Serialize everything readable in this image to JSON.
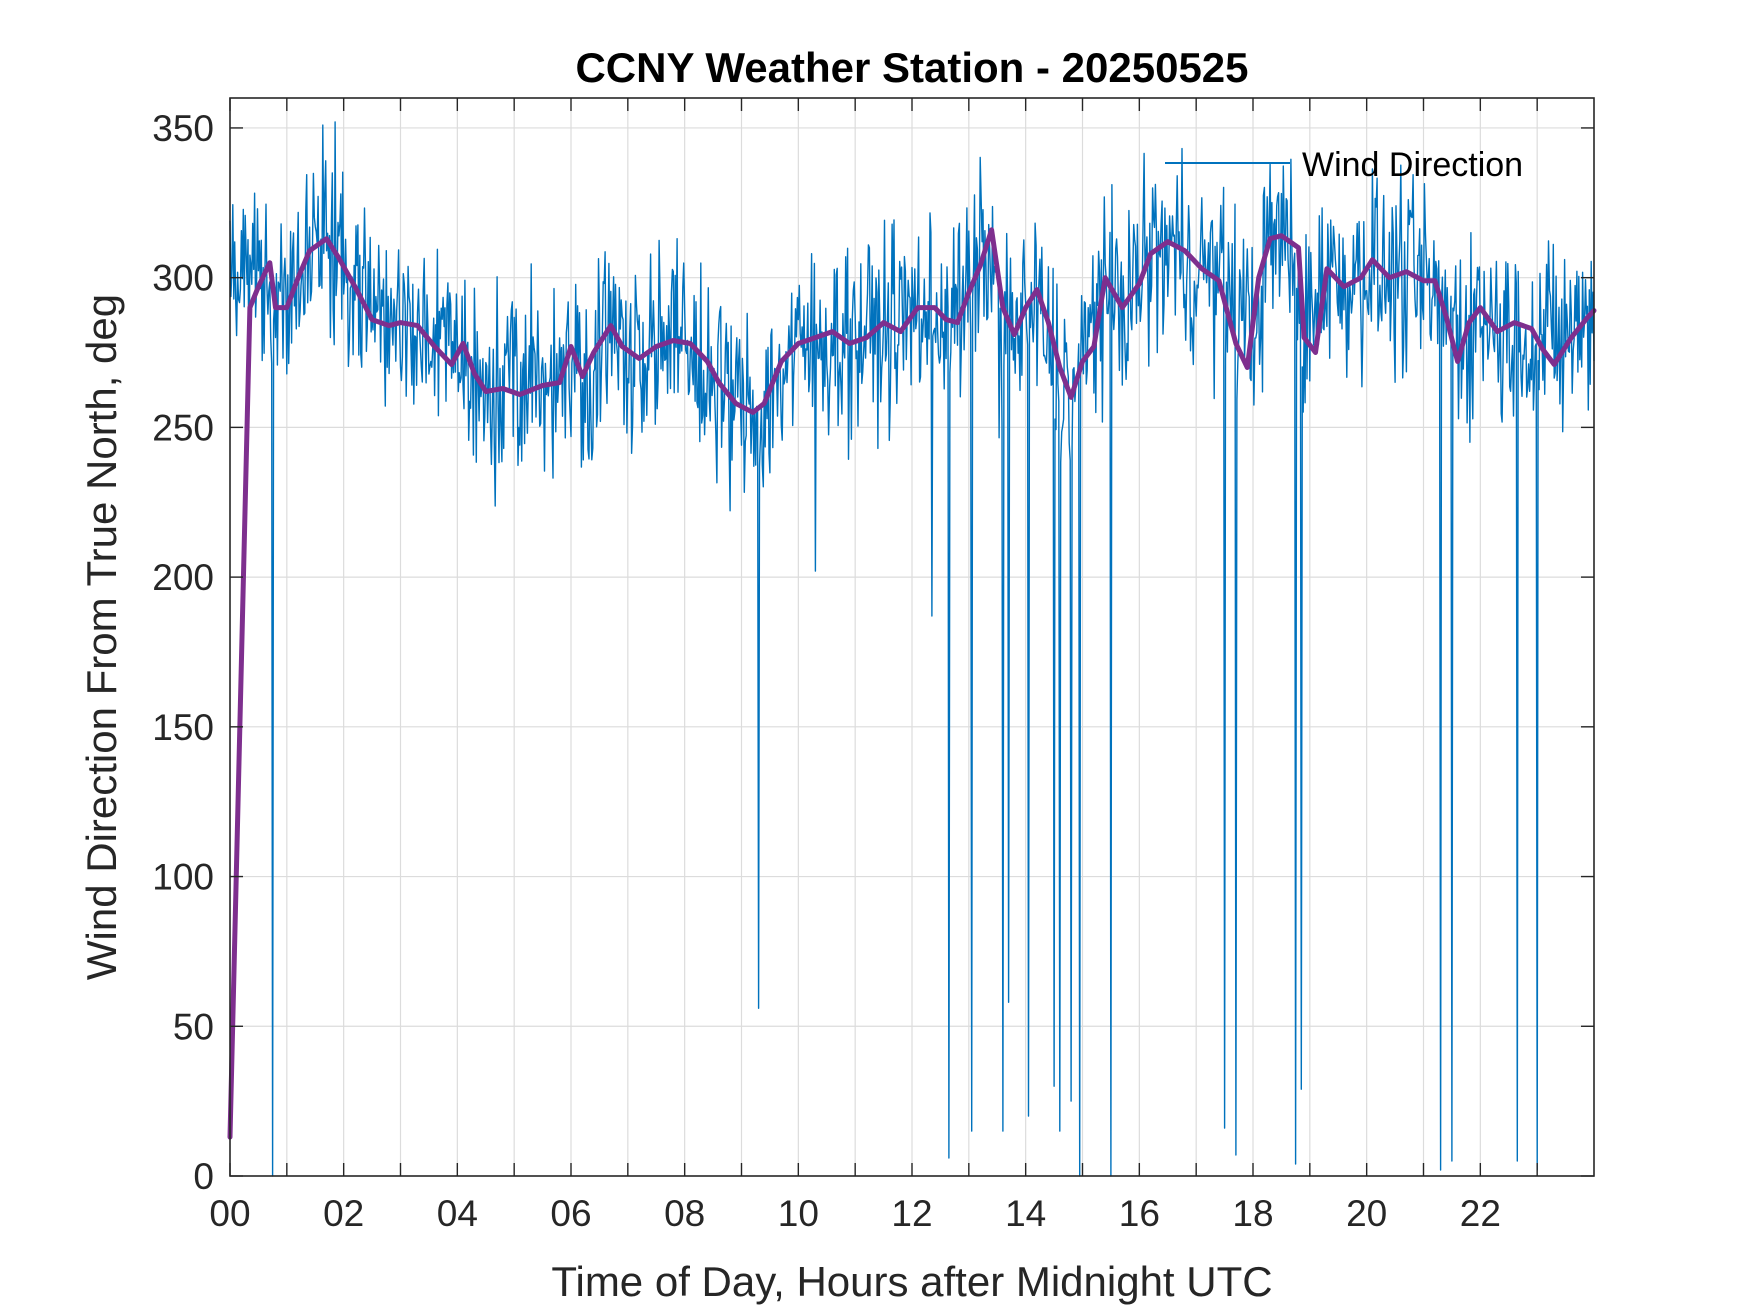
{
  "chart_data": {
    "type": "line",
    "title": "CCNY Weather Station - 20250525",
    "xlabel": "Time of Day, Hours after Midnight UTC",
    "ylabel": "Wind Direction From True North, deg",
    "xlim": [
      0,
      24
    ],
    "ylim": [
      0,
      360
    ],
    "x_ticks": [
      0,
      2,
      4,
      6,
      8,
      10,
      12,
      14,
      16,
      18,
      20,
      22
    ],
    "x_tick_labels": [
      "00",
      "02",
      "04",
      "06",
      "08",
      "10",
      "12",
      "14",
      "16",
      "18",
      "20",
      "22"
    ],
    "y_ticks": [
      0,
      50,
      100,
      150,
      200,
      250,
      300,
      350
    ],
    "y_tick_labels": [
      "0",
      "50",
      "100",
      "150",
      "200",
      "250",
      "300",
      "350"
    ],
    "grid": true,
    "legend_position": "top-right",
    "series": [
      {
        "name": "Wind Direction",
        "color": "#0072BD",
        "line_width": "thin",
        "mean_profile": [
          [
            0,
            300
          ],
          [
            0.3,
            300
          ],
          [
            0.6,
            292
          ],
          [
            1.0,
            293
          ],
          [
            1.3,
            308
          ],
          [
            1.7,
            313
          ],
          [
            2.0,
            305
          ],
          [
            2.4,
            292
          ],
          [
            2.7,
            285
          ],
          [
            3.0,
            285
          ],
          [
            3.3,
            283
          ],
          [
            3.6,
            277
          ],
          [
            4.0,
            275
          ],
          [
            4.3,
            265
          ],
          [
            4.6,
            263
          ],
          [
            5.0,
            263
          ],
          [
            5.5,
            266
          ],
          [
            5.9,
            270
          ],
          [
            6.3,
            270
          ],
          [
            6.7,
            281
          ],
          [
            7.0,
            277
          ],
          [
            7.5,
            278
          ],
          [
            8.0,
            277
          ],
          [
            8.5,
            265
          ],
          [
            9.0,
            257
          ],
          [
            9.4,
            257
          ],
          [
            9.8,
            272
          ],
          [
            10.2,
            278
          ],
          [
            10.6,
            280
          ],
          [
            11.0,
            280
          ],
          [
            11.5,
            283
          ],
          [
            12.0,
            288
          ],
          [
            12.4,
            289
          ],
          [
            12.8,
            288
          ],
          [
            13.0,
            295
          ],
          [
            13.3,
            310
          ],
          [
            13.6,
            285
          ],
          [
            13.9,
            282
          ],
          [
            14.2,
            290
          ],
          [
            14.5,
            272
          ],
          [
            14.8,
            262
          ],
          [
            15.0,
            270
          ],
          [
            15.3,
            297
          ],
          [
            15.7,
            292
          ],
          [
            16.0,
            300
          ],
          [
            16.3,
            310
          ],
          [
            16.7,
            308
          ],
          [
            17.0,
            303
          ],
          [
            17.3,
            302
          ],
          [
            17.7,
            292
          ],
          [
            18.0,
            282
          ],
          [
            18.3,
            312
          ],
          [
            18.6,
            314
          ],
          [
            18.9,
            280
          ],
          [
            19.2,
            302
          ],
          [
            19.6,
            298
          ],
          [
            20.0,
            305
          ],
          [
            20.3,
            300
          ],
          [
            20.7,
            300
          ],
          [
            21.0,
            297
          ],
          [
            21.4,
            290
          ],
          [
            21.7,
            282
          ],
          [
            22.0,
            289
          ],
          [
            22.4,
            282
          ],
          [
            22.7,
            285
          ],
          [
            23.0,
            280
          ],
          [
            23.3,
            278
          ],
          [
            23.7,
            283
          ],
          [
            24.0,
            287
          ]
        ],
        "noise_amplitude_deg": 25,
        "spikes": [
          [
            0.75,
            0
          ],
          [
            9.3,
            56
          ],
          [
            10.3,
            202
          ],
          [
            12.35,
            187
          ],
          [
            12.65,
            6
          ],
          [
            13.05,
            15
          ],
          [
            13.6,
            15
          ],
          [
            13.7,
            58
          ],
          [
            14.05,
            20
          ],
          [
            14.5,
            30
          ],
          [
            14.6,
            15
          ],
          [
            14.8,
            25
          ],
          [
            14.95,
            0
          ],
          [
            15.5,
            0
          ],
          [
            15.15,
            285
          ],
          [
            17.5,
            16
          ],
          [
            17.7,
            7
          ],
          [
            18.75,
            4
          ],
          [
            18.85,
            29
          ],
          [
            21.3,
            2
          ],
          [
            21.5,
            5
          ],
          [
            22.65,
            5
          ],
          [
            23.0,
            2
          ]
        ]
      },
      {
        "name": "",
        "color": "#7E2F8E",
        "line_width": "thick",
        "points": [
          [
            0,
            13
          ],
          [
            0.35,
            290
          ],
          [
            0.5,
            297
          ],
          [
            0.7,
            305
          ],
          [
            0.8,
            290
          ],
          [
            1.0,
            290
          ],
          [
            1.2,
            300
          ],
          [
            1.4,
            309
          ],
          [
            1.7,
            313
          ],
          [
            1.9,
            307
          ],
          [
            2.2,
            297
          ],
          [
            2.5,
            286
          ],
          [
            2.8,
            284
          ],
          [
            3.0,
            285
          ],
          [
            3.3,
            284
          ],
          [
            3.6,
            277
          ],
          [
            3.9,
            271
          ],
          [
            4.1,
            278
          ],
          [
            4.3,
            268
          ],
          [
            4.5,
            262
          ],
          [
            4.8,
            263
          ],
          [
            5.1,
            261
          ],
          [
            5.5,
            264
          ],
          [
            5.8,
            265
          ],
          [
            6.0,
            277
          ],
          [
            6.2,
            267
          ],
          [
            6.4,
            275
          ],
          [
            6.7,
            284
          ],
          [
            6.9,
            277
          ],
          [
            7.2,
            273
          ],
          [
            7.5,
            277
          ],
          [
            7.8,
            279
          ],
          [
            8.1,
            278
          ],
          [
            8.4,
            272
          ],
          [
            8.6,
            265
          ],
          [
            8.9,
            258
          ],
          [
            9.2,
            255
          ],
          [
            9.4,
            258
          ],
          [
            9.7,
            272
          ],
          [
            10.0,
            278
          ],
          [
            10.3,
            280
          ],
          [
            10.6,
            282
          ],
          [
            10.9,
            278
          ],
          [
            11.2,
            280
          ],
          [
            11.5,
            285
          ],
          [
            11.8,
            282
          ],
          [
            12.1,
            290
          ],
          [
            12.4,
            290
          ],
          [
            12.6,
            286
          ],
          [
            12.8,
            285
          ],
          [
            13.0,
            295
          ],
          [
            13.2,
            304
          ],
          [
            13.4,
            316
          ],
          [
            13.6,
            290
          ],
          [
            13.8,
            281
          ],
          [
            14.0,
            290
          ],
          [
            14.2,
            296
          ],
          [
            14.4,
            285
          ],
          [
            14.6,
            270
          ],
          [
            14.8,
            260
          ],
          [
            15.0,
            272
          ],
          [
            15.2,
            277
          ],
          [
            15.4,
            300
          ],
          [
            15.7,
            290
          ],
          [
            16.0,
            298
          ],
          [
            16.2,
            308
          ],
          [
            16.5,
            312
          ],
          [
            16.8,
            309
          ],
          [
            17.1,
            303
          ],
          [
            17.4,
            299
          ],
          [
            17.7,
            278
          ],
          [
            17.9,
            270
          ],
          [
            18.1,
            300
          ],
          [
            18.3,
            313
          ],
          [
            18.5,
            314
          ],
          [
            18.8,
            310
          ],
          [
            18.9,
            280
          ],
          [
            19.1,
            275
          ],
          [
            19.3,
            303
          ],
          [
            19.6,
            297
          ],
          [
            19.9,
            300
          ],
          [
            20.1,
            306
          ],
          [
            20.4,
            300
          ],
          [
            20.7,
            302
          ],
          [
            21.0,
            299
          ],
          [
            21.2,
            299
          ],
          [
            21.4,
            287
          ],
          [
            21.6,
            272
          ],
          [
            21.8,
            285
          ],
          [
            22.0,
            290
          ],
          [
            22.3,
            282
          ],
          [
            22.6,
            285
          ],
          [
            22.9,
            283
          ],
          [
            23.1,
            276
          ],
          [
            23.3,
            271
          ],
          [
            23.6,
            280
          ],
          [
            23.9,
            287
          ],
          [
            24.0,
            289
          ]
        ]
      }
    ],
    "legend": [
      {
        "label": "Wind Direction",
        "color": "#0072BD"
      }
    ]
  }
}
